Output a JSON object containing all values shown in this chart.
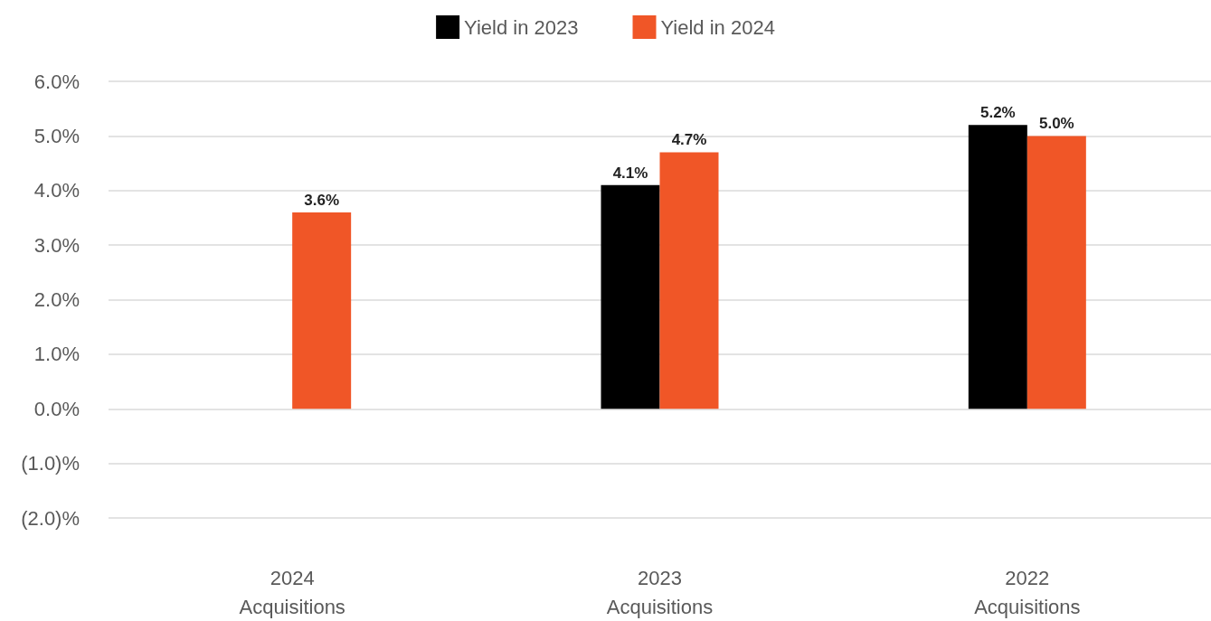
{
  "chart_data": {
    "type": "bar",
    "categories": [
      "2024\nAcquisitions",
      "2023\nAcquisitions",
      "2022\nAcquisitions"
    ],
    "series": [
      {
        "name": "Yield in 2023",
        "color": "#000000",
        "values": [
          null,
          4.1,
          5.2
        ],
        "value_labels": [
          null,
          "4.1%",
          "5.2%"
        ]
      },
      {
        "name": "Yield in 2024",
        "color": "#f05627",
        "values": [
          3.6,
          4.7,
          5.0
        ],
        "value_labels": [
          "3.6%",
          "4.7%",
          "5.0%"
        ]
      }
    ],
    "ylim": [
      -2,
      6
    ],
    "yticks": [
      {
        "value": -2,
        "label": "(2.0)%"
      },
      {
        "value": -1,
        "label": "(1.0)%"
      },
      {
        "value": 0,
        "label": "0.0%"
      },
      {
        "value": 1,
        "label": "1.0%"
      },
      {
        "value": 2,
        "label": "2.0%"
      },
      {
        "value": 3,
        "label": "3.0%"
      },
      {
        "value": 4,
        "label": "4.0%"
      },
      {
        "value": 5,
        "label": "5.0%"
      },
      {
        "value": 6,
        "label": "6.0%"
      }
    ],
    "grid": "y",
    "legend": "top"
  }
}
